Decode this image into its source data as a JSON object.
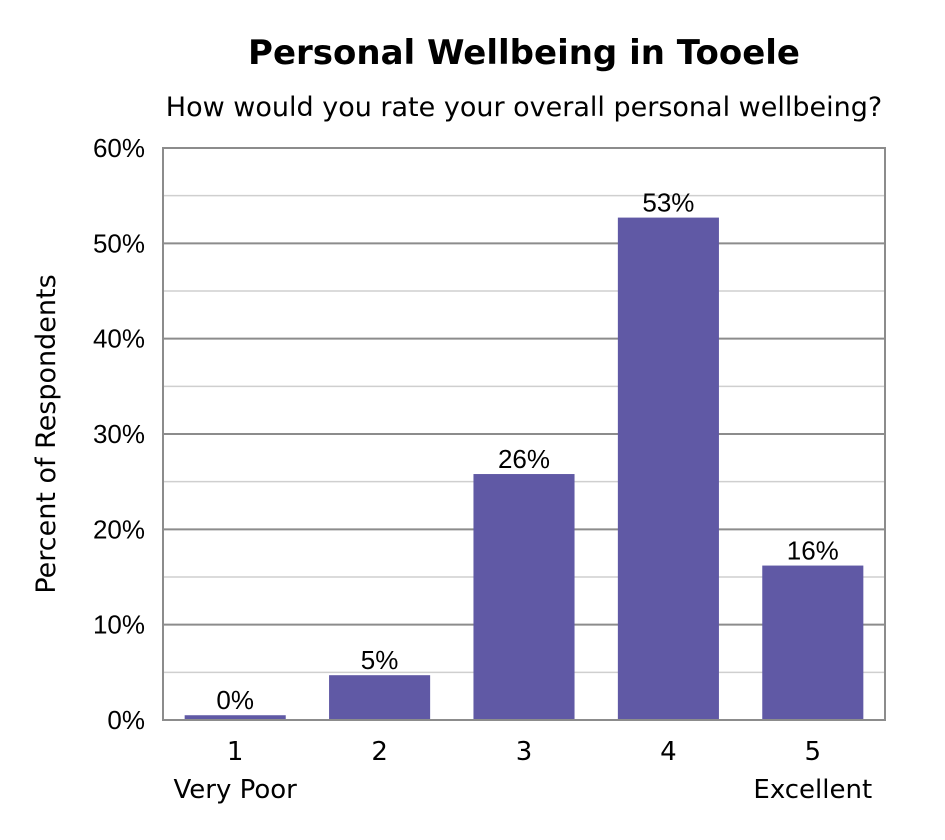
{
  "chart_data": {
    "type": "bar",
    "title": "Personal Wellbeing in Tooele",
    "subtitle": "How would you rate your overall personal wellbeing?",
    "xlabel": "",
    "ylabel": "Percent of Respondents",
    "categories": [
      "1",
      "2",
      "3",
      "4",
      "5"
    ],
    "category_sublabels": [
      "Very Poor",
      "",
      "",
      "",
      "Excellent"
    ],
    "values": [
      0.5,
      4.7,
      25.8,
      52.7,
      16.2
    ],
    "data_labels": [
      "0%",
      "5%",
      "26%",
      "53%",
      "16%"
    ],
    "ylim": [
      0,
      60
    ],
    "yticks": [
      0,
      10,
      20,
      30,
      40,
      50,
      60
    ],
    "ytick_labels": [
      "0%",
      "10%",
      "20%",
      "30%",
      "40%",
      "50%",
      "60%"
    ],
    "minor_gridlines": true,
    "grid": true,
    "legend": "none",
    "colors": {
      "bar": "#6059a5",
      "gridline_major": "#8c8c8c",
      "gridline_minor": "#cfcfcf",
      "axis": "#8c8c8c"
    }
  }
}
